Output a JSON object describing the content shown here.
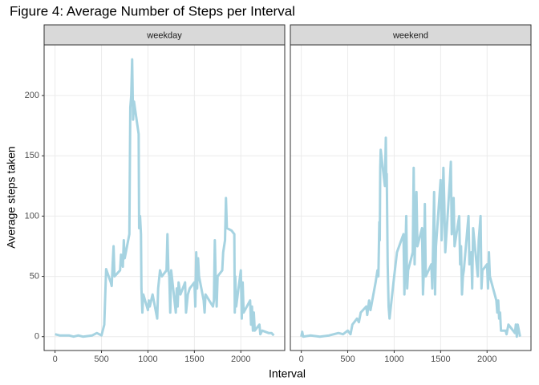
{
  "title": "Figure 4: Average Number of Steps per Interval",
  "x_label": "Interval",
  "y_label": "Average steps taken",
  "chart_data": [
    {
      "type": "line",
      "panel": "weekday",
      "color": "#a6d3e1",
      "grid": true,
      "xlim": [
        -117.75,
        2472.75
      ],
      "ylim": [
        -11.5,
        242
      ],
      "xticks": [
        0,
        500,
        1000,
        1500,
        2000
      ],
      "yticks": [
        0,
        50,
        100,
        150,
        200
      ],
      "x": [
        0,
        50,
        100,
        150,
        200,
        250,
        300,
        350,
        400,
        450,
        500,
        530,
        545,
        550,
        600,
        610,
        620,
        630,
        640,
        700,
        710,
        730,
        740,
        750,
        800,
        810,
        820,
        830,
        840,
        850,
        900,
        905,
        915,
        925,
        930,
        940,
        950,
        1000,
        1010,
        1020,
        1050,
        1100,
        1110,
        1130,
        1150,
        1200,
        1210,
        1220,
        1230,
        1240,
        1250,
        1300,
        1310,
        1320,
        1330,
        1350,
        1400,
        1410,
        1430,
        1450,
        1500,
        1510,
        1520,
        1530,
        1540,
        1550,
        1600,
        1610,
        1620,
        1700,
        1710,
        1720,
        1730,
        1740,
        1750,
        1800,
        1810,
        1830,
        1840,
        1850,
        1900,
        1930,
        1935,
        1940,
        1950,
        2000,
        2010,
        2020,
        2030,
        2100,
        2110,
        2120,
        2130,
        2140,
        2150,
        2200,
        2210,
        2230,
        2300,
        2330,
        2355
      ],
      "values": [
        2,
        1,
        1,
        1,
        0,
        1,
        0,
        0.5,
        1,
        3,
        1,
        10,
        45,
        56,
        45,
        42,
        60,
        75,
        50,
        55,
        68,
        58,
        80,
        65,
        85,
        190,
        200,
        230,
        180,
        195,
        168,
        90,
        100,
        85,
        40,
        20,
        35,
        22,
        30,
        25,
        35,
        15,
        40,
        55,
        50,
        55,
        85,
        55,
        50,
        20,
        55,
        20,
        40,
        25,
        45,
        35,
        45,
        20,
        35,
        40,
        45,
        25,
        70,
        40,
        65,
        50,
        30,
        20,
        35,
        25,
        30,
        80,
        45,
        25,
        50,
        55,
        70,
        80,
        115,
        90,
        88,
        85,
        20,
        50,
        25,
        55,
        15,
        45,
        20,
        30,
        10,
        25,
        5,
        20,
        5,
        10,
        2,
        5,
        3,
        3,
        1
      ]
    },
    {
      "type": "line",
      "panel": "weekend",
      "color": "#a6d3e1",
      "grid": true,
      "xlim": [
        -117.75,
        2472.75
      ],
      "ylim": [
        -11.5,
        242
      ],
      "xticks": [
        0,
        500,
        1000,
        1500,
        2000
      ],
      "yticks": [
        0,
        50,
        100,
        150,
        200
      ],
      "x": [
        0,
        10,
        20,
        100,
        200,
        300,
        400,
        450,
        500,
        530,
        550,
        600,
        620,
        640,
        700,
        710,
        730,
        745,
        800,
        810,
        820,
        830,
        840,
        845,
        850,
        855,
        900,
        910,
        915,
        920,
        930,
        940,
        950,
        1000,
        1030,
        1100,
        1110,
        1130,
        1140,
        1150,
        1200,
        1210,
        1220,
        1230,
        1240,
        1250,
        1300,
        1310,
        1320,
        1330,
        1340,
        1400,
        1410,
        1430,
        1440,
        1450,
        1500,
        1510,
        1520,
        1530,
        1540,
        1550,
        1600,
        1610,
        1620,
        1630,
        1640,
        1650,
        1700,
        1710,
        1720,
        1730,
        1740,
        1750,
        1800,
        1810,
        1830,
        1840,
        1850,
        1900,
        1910,
        1930,
        1940,
        1950,
        2000,
        2010,
        2020,
        2030,
        2100,
        2110,
        2120,
        2130,
        2140,
        2150,
        2200,
        2210,
        2230,
        2300,
        2310,
        2320,
        2330,
        2355
      ],
      "values": [
        0,
        4,
        0,
        1,
        0,
        1,
        3,
        2,
        5,
        2,
        10,
        15,
        12,
        20,
        25,
        18,
        30,
        22,
        45,
        50,
        55,
        50,
        95,
        80,
        140,
        155,
        125,
        165,
        125,
        135,
        60,
        25,
        15,
        50,
        70,
        85,
        35,
        100,
        40,
        55,
        70,
        140,
        60,
        95,
        120,
        75,
        90,
        35,
        55,
        110,
        50,
        60,
        40,
        120,
        35,
        75,
        130,
        80,
        100,
        140,
        110,
        70,
        130,
        145,
        85,
        100,
        115,
        75,
        100,
        60,
        75,
        35,
        50,
        55,
        100,
        60,
        70,
        40,
        90,
        50,
        80,
        100,
        40,
        55,
        60,
        40,
        70,
        50,
        30,
        20,
        30,
        15,
        20,
        5,
        5,
        2,
        10,
        3,
        10,
        0,
        10,
        0
      ]
    }
  ]
}
